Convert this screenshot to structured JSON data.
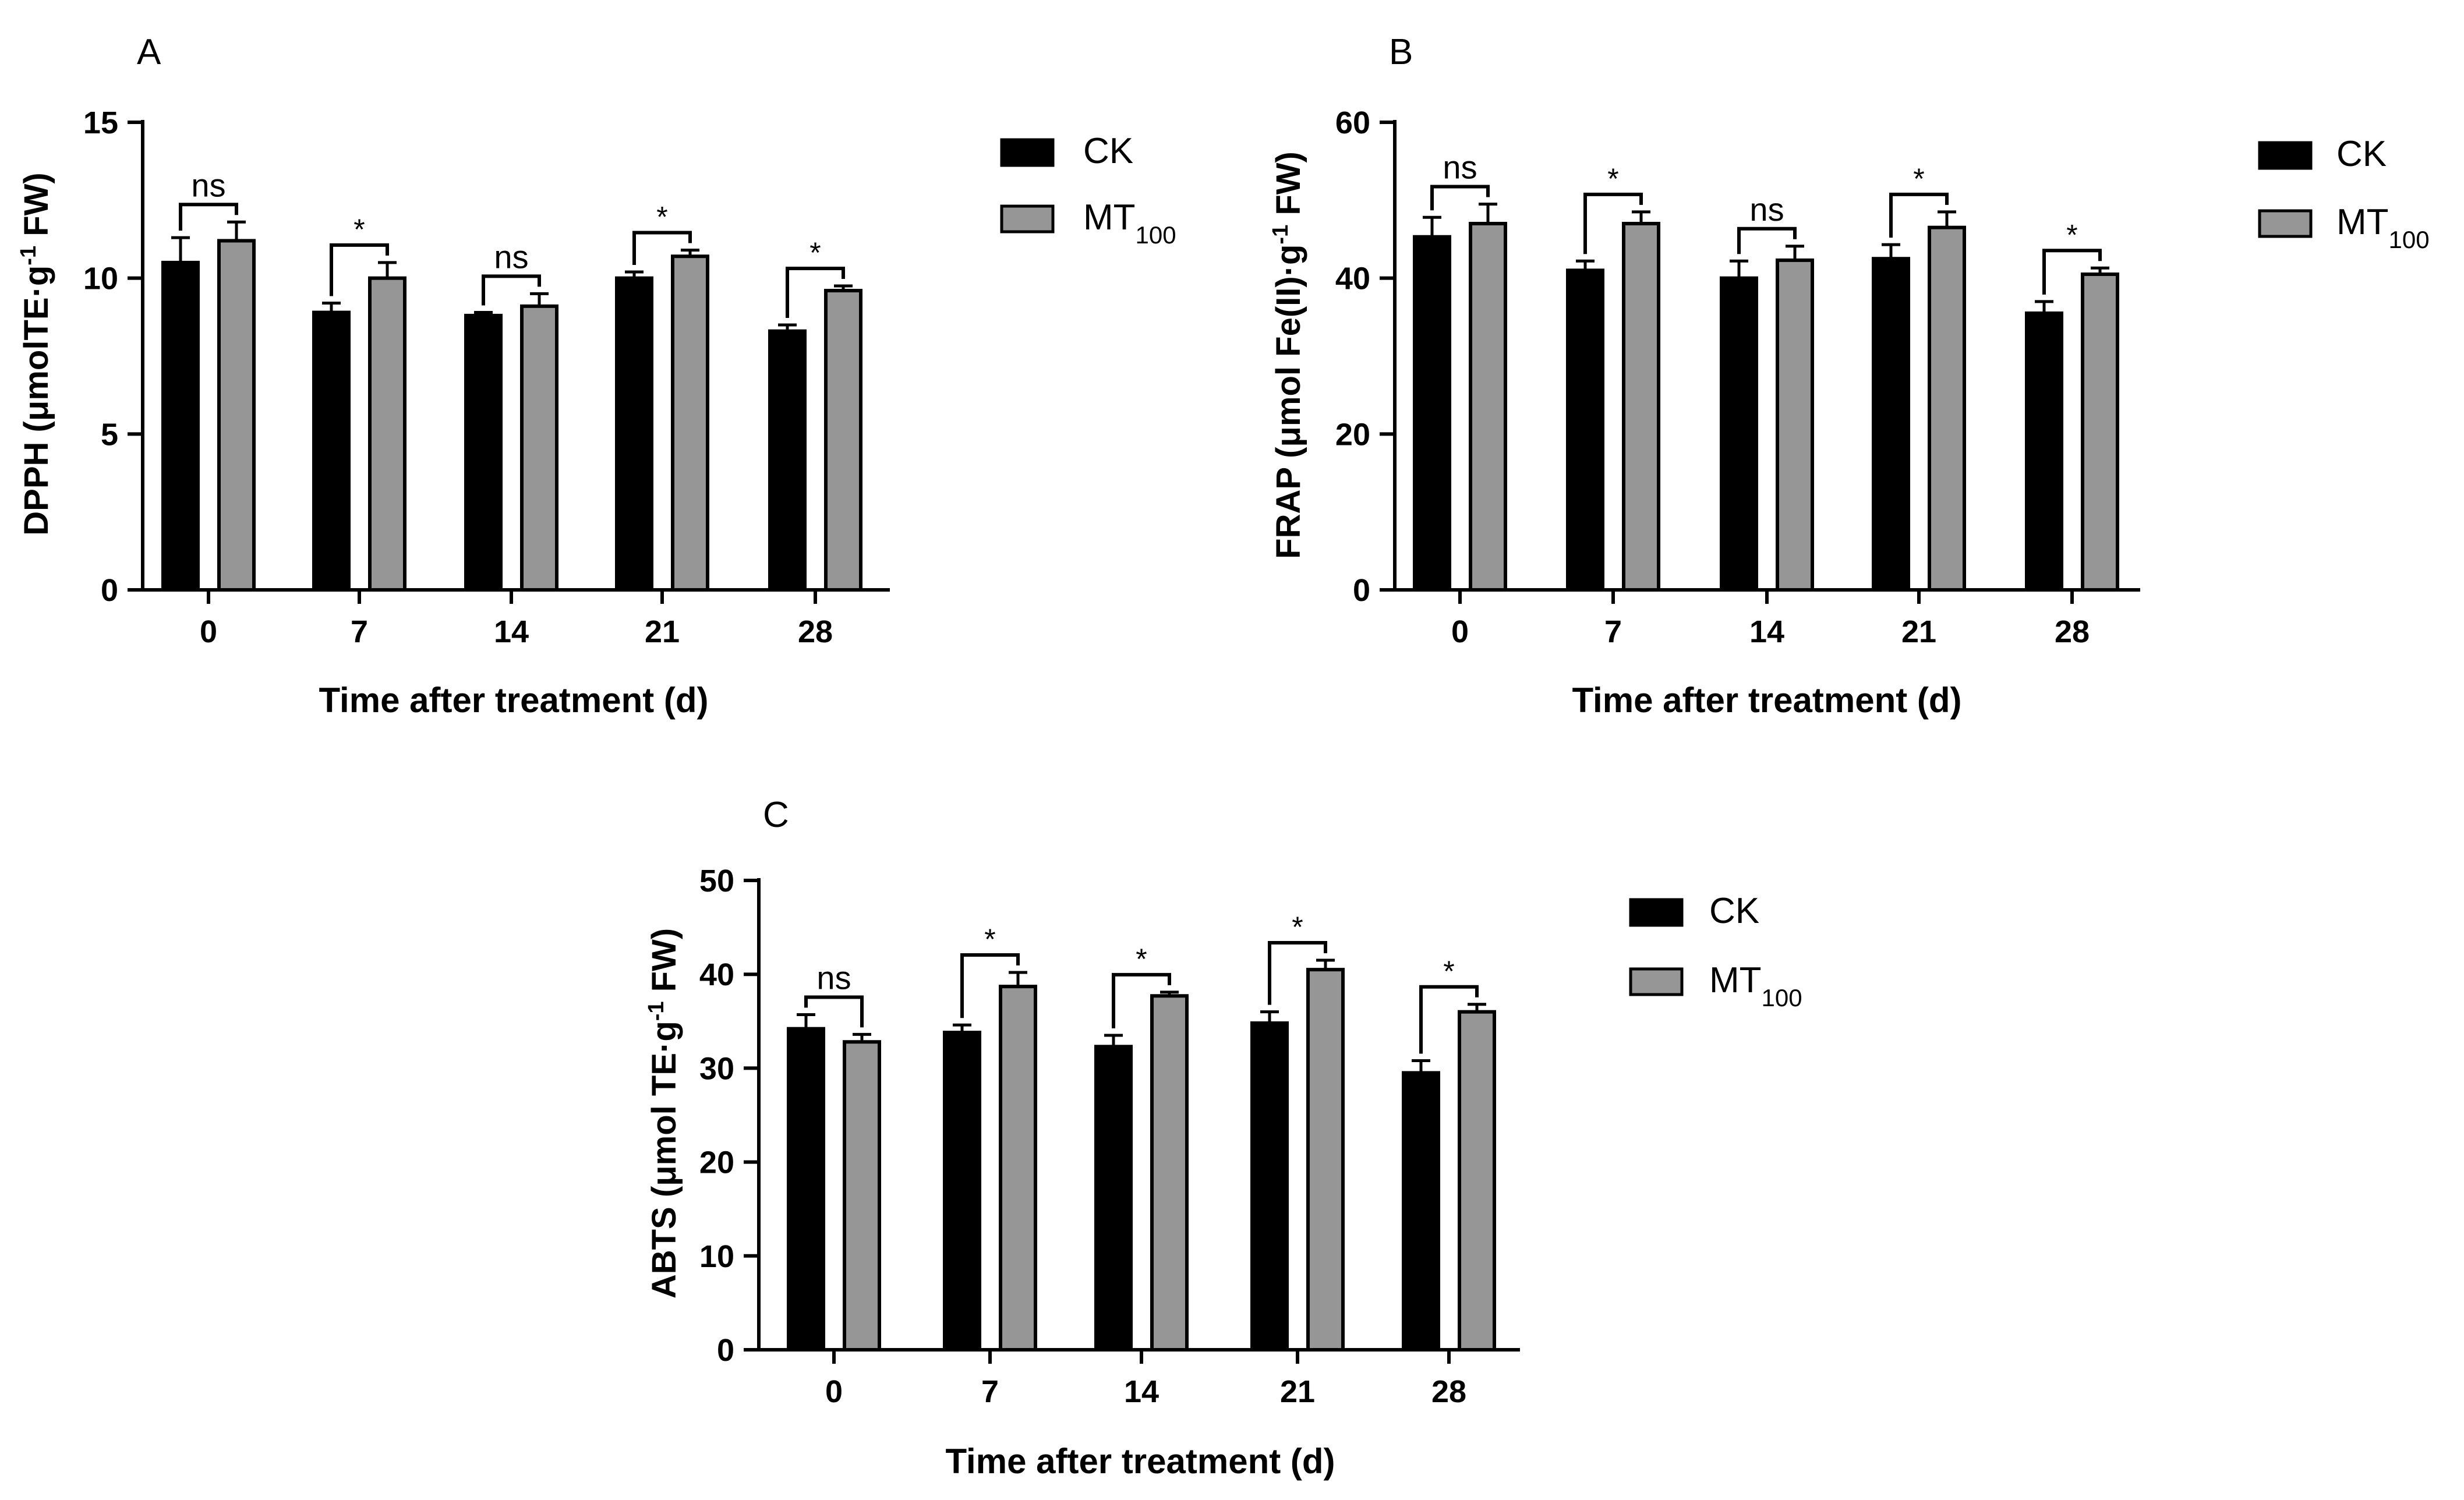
{
  "colors": {
    "ck": "#000000",
    "mt": "#969696",
    "axis": "#000000",
    "background": "#ffffff"
  },
  "legend": {
    "ck": "CK",
    "mt_base": "MT",
    "mt_sub": "100"
  },
  "chart_data": [
    {
      "panel": "A",
      "type": "bar",
      "categories": [
        "0",
        "7",
        "14",
        "21",
        "28"
      ],
      "series": [
        {
          "name": "CK",
          "values": [
            10.5,
            8.9,
            8.8,
            10.0,
            8.3
          ],
          "errors": [
            0.8,
            0.3,
            0.1,
            0.2,
            0.2
          ]
        },
        {
          "name": "MT100",
          "values": [
            11.2,
            10.0,
            9.1,
            10.7,
            9.6
          ],
          "errors": [
            0.6,
            0.5,
            0.4,
            0.2,
            0.15
          ]
        }
      ],
      "significance": [
        "ns",
        "*",
        "ns",
        "*",
        "*"
      ],
      "ylabel_main": "DPPH (μmolTE·g",
      "ylabel_sup": "-1",
      "ylabel_tail": " FW)",
      "xlabel": "Time after treatment (d)",
      "ylim": [
        0,
        15
      ],
      "yticks": [
        0,
        5,
        10,
        15
      ],
      "legend_position": "right"
    },
    {
      "panel": "B",
      "type": "bar",
      "categories": [
        "0",
        "7",
        "14",
        "21",
        "28"
      ],
      "series": [
        {
          "name": "CK",
          "values": [
            45.3,
            41.0,
            40.0,
            42.5,
            35.5
          ],
          "errors": [
            2.5,
            1.2,
            2.2,
            1.8,
            1.5
          ]
        },
        {
          "name": "MT100",
          "values": [
            47.0,
            47.0,
            42.3,
            46.5,
            40.5
          ],
          "errors": [
            2.5,
            1.5,
            1.8,
            2.0,
            0.8
          ]
        }
      ],
      "significance": [
        "ns",
        "*",
        "ns",
        "*",
        "*"
      ],
      "ylabel_main": "FRAP (μmol Fe(II)·g",
      "ylabel_sup": "-1",
      "ylabel_tail": " FW)",
      "xlabel": "Time after treatment (d)",
      "ylim": [
        0,
        60
      ],
      "yticks": [
        0,
        20,
        40,
        60
      ],
      "legend_position": "right"
    },
    {
      "panel": "C",
      "type": "bar",
      "categories": [
        "0",
        "7",
        "14",
        "21",
        "28"
      ],
      "series": [
        {
          "name": "CK",
          "values": [
            34.2,
            33.8,
            32.3,
            34.8,
            29.5
          ],
          "errors": [
            1.5,
            0.8,
            1.2,
            1.2,
            1.3
          ]
        },
        {
          "name": "MT100",
          "values": [
            32.8,
            38.7,
            37.7,
            40.5,
            36.0
          ],
          "errors": [
            0.8,
            1.5,
            0.4,
            1.0,
            0.8
          ]
        }
      ],
      "significance": [
        "ns",
        "*",
        "*",
        "*",
        "*"
      ],
      "ylabel_main": "ABTS (μmol TE·g",
      "ylabel_sup": "-1",
      "ylabel_tail": " FW)",
      "xlabel": "Time after treatment (d)",
      "ylim": [
        0,
        50
      ],
      "yticks": [
        0,
        10,
        20,
        30,
        40,
        50
      ],
      "legend_position": "right"
    }
  ]
}
